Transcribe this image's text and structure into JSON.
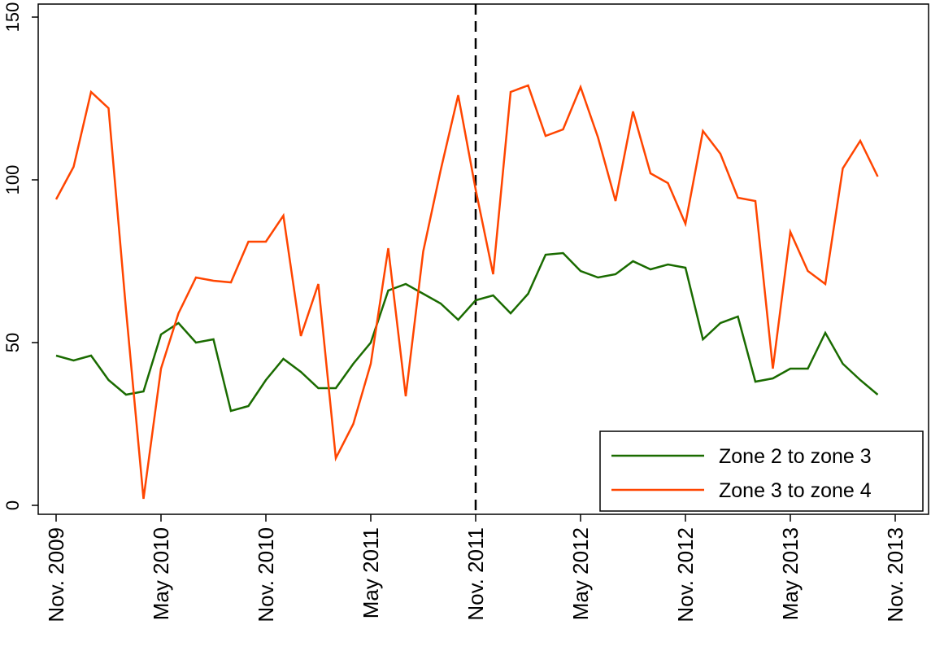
{
  "chart_data": {
    "type": "line",
    "title": "",
    "xlabel": "",
    "ylabel": "",
    "grid": false,
    "legend_position": "bottom-right",
    "ylim": [
      0,
      150
    ],
    "yticks": [
      0,
      50,
      100,
      150
    ],
    "xticks": [
      {
        "t": 0,
        "label": "Nov. 2009"
      },
      {
        "t": 6,
        "label": "May 2010"
      },
      {
        "t": 12,
        "label": "Nov. 2010"
      },
      {
        "t": 18,
        "label": "May 2011"
      },
      {
        "t": 24,
        "label": "Nov. 2011"
      },
      {
        "t": 30,
        "label": "May 2012"
      },
      {
        "t": 36,
        "label": "Nov. 2012"
      },
      {
        "t": 42,
        "label": "May 2013"
      },
      {
        "t": 48,
        "label": "Nov. 2013"
      }
    ],
    "vline_t": 24,
    "series": [
      {
        "name": "Zone 2 to zone 3",
        "color": "#1a6b00",
        "values": [
          46,
          44.5,
          46,
          38.5,
          34,
          35,
          52.5,
          56,
          50,
          51,
          29,
          30.5,
          38.5,
          45,
          41,
          36,
          36,
          43.5,
          50,
          66,
          68,
          65,
          62,
          57,
          63,
          64.5,
          59,
          65,
          77,
          77.5,
          72,
          70,
          71,
          75,
          72.5,
          74,
          73,
          51,
          56,
          58,
          38,
          39,
          42,
          42,
          53,
          43.5,
          38.5,
          34
        ]
      },
      {
        "name": "Zone 3 to zone 4",
        "color": "#ff4500",
        "values": [
          94,
          104,
          127,
          122,
          60,
          2,
          42,
          59,
          70,
          69,
          68.5,
          81,
          81,
          89,
          52,
          68,
          14.5,
          25,
          43.5,
          79,
          33.5,
          78,
          103,
          126,
          97,
          71,
          127,
          129,
          113.5,
          115.5,
          128.5,
          113,
          93.5,
          121,
          102,
          99,
          86.5,
          115,
          108,
          94.5,
          93.5,
          42,
          84,
          72,
          68,
          103.5,
          112,
          101
        ]
      }
    ]
  }
}
